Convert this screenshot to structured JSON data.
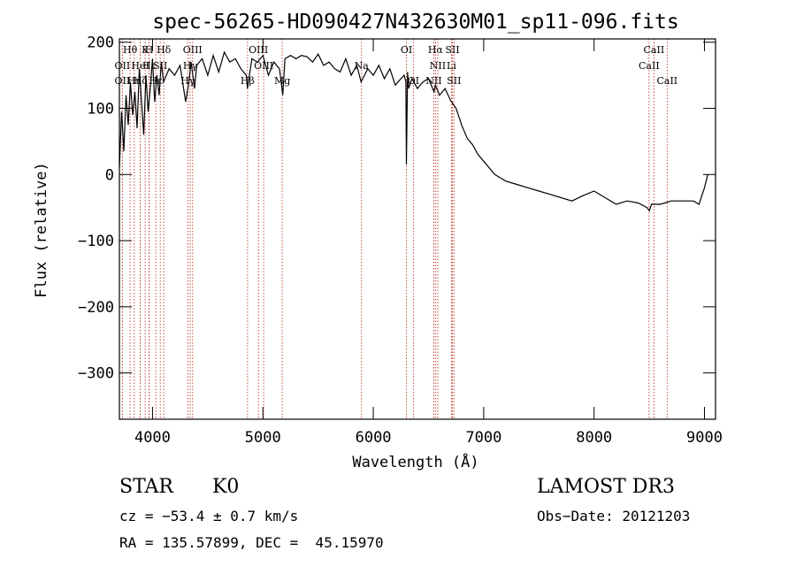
{
  "chart_data": {
    "type": "line",
    "title": "spec-56265-HD090427N432630M01_sp11-096.fits",
    "xlabel": "Wavelength (Å)",
    "ylabel": "Flux (relative)",
    "xlim": [
      3700,
      9100
    ],
    "ylim": [
      -370,
      205
    ],
    "x_ticks": [
      4000,
      5000,
      6000,
      7000,
      8000,
      9000
    ],
    "y_ticks": [
      -300,
      -200,
      -100,
      0,
      100,
      200
    ],
    "series": [
      {
        "name": "flux",
        "x": [
          3700,
          3720,
          3740,
          3760,
          3780,
          3800,
          3820,
          3840,
          3860,
          3880,
          3900,
          3920,
          3940,
          3960,
          3980,
          4000,
          4020,
          4040,
          4060,
          4080,
          4100,
          4150,
          4200,
          4250,
          4300,
          4330,
          4350,
          4380,
          4400,
          4450,
          4500,
          4550,
          4600,
          4650,
          4700,
          4750,
          4800,
          4850,
          4860,
          4900,
          4950,
          5000,
          5050,
          5100,
          5150,
          5180,
          5200,
          5250,
          5300,
          5350,
          5400,
          5450,
          5500,
          5550,
          5600,
          5650,
          5700,
          5750,
          5800,
          5850,
          5890,
          5950,
          6000,
          6050,
          6100,
          6150,
          6200,
          6250,
          6280,
          6295,
          6300,
          6310,
          6320,
          6350,
          6400,
          6450,
          6500,
          6550,
          6563,
          6600,
          6650,
          6700,
          6750,
          6800,
          6850,
          6900,
          6950,
          7000,
          7050,
          7100,
          7150,
          7200,
          7300,
          7400,
          7500,
          7600,
          7700,
          7800,
          7900,
          8000,
          8100,
          8200,
          8300,
          8400,
          8480,
          8500,
          8520,
          8600,
          8700,
          8800,
          8900,
          8950,
          9000,
          9030
        ],
        "y": [
          10,
          95,
          35,
          120,
          75,
          140,
          90,
          125,
          70,
          160,
          110,
          60,
          150,
          95,
          130,
          175,
          110,
          150,
          120,
          170,
          140,
          160,
          150,
          165,
          110,
          140,
          170,
          130,
          165,
          175,
          150,
          180,
          155,
          185,
          170,
          175,
          160,
          150,
          130,
          175,
          170,
          180,
          150,
          170,
          160,
          120,
          175,
          180,
          175,
          180,
          178,
          170,
          182,
          165,
          170,
          160,
          155,
          175,
          150,
          165,
          140,
          160,
          150,
          165,
          145,
          160,
          135,
          145,
          150,
          140,
          15,
          155,
          130,
          145,
          130,
          140,
          145,
          125,
          135,
          120,
          130,
          112,
          100,
          75,
          55,
          45,
          30,
          20,
          10,
          0,
          -5,
          -10,
          -15,
          -20,
          -25,
          -30,
          -35,
          -40,
          -32,
          -25,
          -35,
          -45,
          -40,
          -43,
          -50,
          -55,
          -45,
          -45,
          -40,
          -40,
          -40,
          -45,
          -20,
          0
        ]
      }
    ],
    "lines": [
      {
        "label": "Hθ",
        "x": 3797,
        "row": 0
      },
      {
        "label": "OII",
        "x": 3727,
        "row": 1
      },
      {
        "label": "OII",
        "x": 3727,
        "row": 2
      },
      {
        "label": "K",
        "x": 3934,
        "row": 0
      },
      {
        "label": "Hε",
        "x": 3970,
        "row": 1
      },
      {
        "label": "Hη",
        "x": 3835,
        "row": 2
      },
      {
        "label": "HeI",
        "x": 3889,
        "row": 1
      },
      {
        "label": "SII",
        "x": 4070,
        "row": 1
      },
      {
        "label": "Hζ",
        "x": 3889,
        "row": 2
      },
      {
        "label": "H",
        "x": 3969,
        "row": 0
      },
      {
        "label": "Hδ",
        "x": 4102,
        "row": 0
      },
      {
        "label": "Hε",
        "x": 4030,
        "row": 2
      },
      {
        "label": "OIII",
        "x": 4363,
        "row": 0
      },
      {
        "label": "Hγ",
        "x": 4341,
        "row": 1
      },
      {
        "label": "Hγ",
        "x": 4320,
        "row": 2
      },
      {
        "label": "OIII",
        "x": 4959,
        "row": 0
      },
      {
        "label": "OIII",
        "x": 5007,
        "row": 1
      },
      {
        "label": "Hβ",
        "x": 4861,
        "row": 2
      },
      {
        "label": "Mg",
        "x": 5175,
        "row": 2
      },
      {
        "label": "Na",
        "x": 5893,
        "row": 1
      },
      {
        "label": "OI",
        "x": 6300,
        "row": 0
      },
      {
        "label": "OI",
        "x": 6363,
        "row": 2
      },
      {
        "label": "Hα",
        "x": 6563,
        "row": 0
      },
      {
        "label": "SII",
        "x": 6717,
        "row": 0
      },
      {
        "label": "NII",
        "x": 6584,
        "row": 1
      },
      {
        "label": "Li",
        "x": 6708,
        "row": 1
      },
      {
        "label": "NII",
        "x": 6548,
        "row": 2
      },
      {
        "label": "SII",
        "x": 6731,
        "row": 2
      },
      {
        "label": "CaII",
        "x": 8542,
        "row": 0
      },
      {
        "label": "CaII",
        "x": 8498,
        "row": 1
      },
      {
        "label": "CaII",
        "x": 8662,
        "row": 2
      }
    ]
  },
  "info": {
    "object_type": "STAR",
    "subclass": "K0",
    "survey": "LAMOST DR3",
    "cz": "cz = −53.4 ± 0.7 km/s",
    "obs_date": "Obs−Date: 20121203",
    "coords": "RA = 135.57899, DEC =  45.15970"
  }
}
